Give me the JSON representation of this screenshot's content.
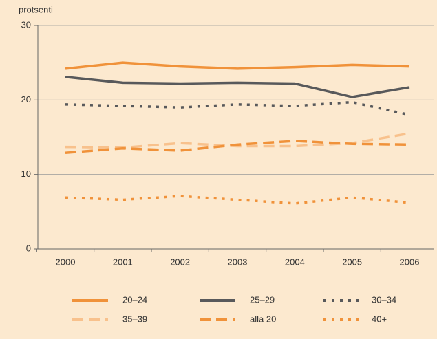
{
  "chart_data": {
    "type": "line",
    "y_label": "protsenti",
    "categories": [
      "2000",
      "2001",
      "2002",
      "2003",
      "2004",
      "2005",
      "2006"
    ],
    "ylim": [
      0,
      30
    ],
    "yticks": [
      0,
      10,
      20,
      30
    ],
    "grid": true,
    "series": [
      {
        "name": "20–24",
        "color": "#f0923a",
        "style": "solid",
        "values": [
          24.2,
          25.0,
          24.5,
          24.2,
          24.4,
          24.7,
          24.5
        ]
      },
      {
        "name": "25–29",
        "color": "#58595b",
        "style": "solid",
        "values": [
          23.1,
          22.3,
          22.2,
          22.3,
          22.2,
          20.4,
          21.7
        ]
      },
      {
        "name": "30–34",
        "color": "#58595b",
        "style": "dotted",
        "values": [
          19.4,
          19.2,
          19.0,
          19.4,
          19.2,
          19.7,
          18.0
        ]
      },
      {
        "name": "35–39",
        "color": "#f8c18c",
        "style": "dashed",
        "values": [
          13.7,
          13.6,
          14.2,
          13.8,
          13.8,
          14.2,
          15.5
        ]
      },
      {
        "name": "alla 20",
        "color": "#f0923a",
        "style": "dashed",
        "values": [
          12.9,
          13.5,
          13.2,
          14.0,
          14.5,
          14.1,
          14.0
        ]
      },
      {
        "name": "40+",
        "color": "#f0923a",
        "style": "dotted",
        "values": [
          6.9,
          6.6,
          7.1,
          6.6,
          6.1,
          6.9,
          6.2
        ]
      }
    ]
  }
}
